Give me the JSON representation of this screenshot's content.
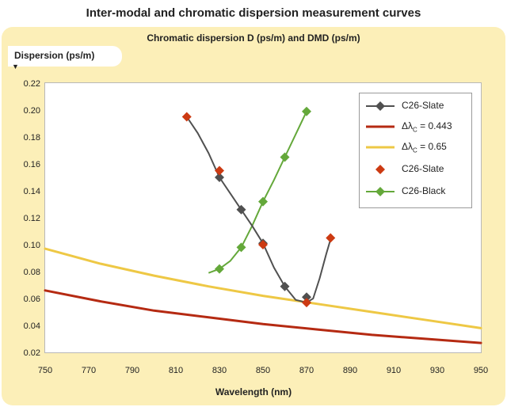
{
  "title": "Inter-modal and chromatic dispersion measurement curves",
  "chart_data": {
    "type": "line",
    "title": "Chromatic dispersion D (ps/m) and DMD (ps/m)",
    "ylabel": "Dispersion (ps/m)",
    "xlabel": "Wavelength (nm)",
    "xlim": [
      750,
      950
    ],
    "ylim": [
      0.02,
      0.22
    ],
    "xticks": [
      750,
      770,
      790,
      810,
      830,
      850,
      870,
      890,
      910,
      930,
      950
    ],
    "yticks": [
      "0.02",
      "0.04",
      "0.06",
      "0.08",
      "0.10",
      "0.12",
      "0.14",
      "0.16",
      "0.18",
      "0.20",
      "0.22"
    ],
    "grid": false,
    "legend_position": "top-right",
    "series": [
      {
        "name": "C26-Slate",
        "style": "line-markers",
        "marker": "diamond",
        "color": "#505050",
        "marker_color": "#505050",
        "x": [
          830,
          840,
          850,
          860,
          870
        ],
        "y": [
          0.15,
          0.126,
          0.101,
          0.069,
          0.061
        ],
        "curve_x": [
          815,
          820,
          825,
          830,
          835,
          840,
          845,
          850,
          855,
          860,
          865,
          870,
          873,
          876,
          879,
          881
        ],
        "curve_y": [
          0.195,
          0.183,
          0.168,
          0.15,
          0.138,
          0.126,
          0.114,
          0.101,
          0.083,
          0.069,
          0.059,
          0.057,
          0.06,
          0.075,
          0.093,
          0.104
        ]
      },
      {
        "name": "Δλc = 0.443",
        "label_main": "Δλ",
        "label_sub": "C",
        "label_value": " = 0.443",
        "style": "line",
        "color": "#b52a12",
        "x": [
          750,
          775,
          800,
          825,
          850,
          875,
          900,
          925,
          950
        ],
        "y": [
          0.066,
          0.058,
          0.051,
          0.046,
          0.041,
          0.037,
          0.033,
          0.03,
          0.027
        ]
      },
      {
        "name": "Δλc = 0.65",
        "label_main": "Δλ",
        "label_sub": "C",
        "label_value": " = 0.65",
        "style": "line",
        "color": "#eec845",
        "x": [
          750,
          775,
          800,
          825,
          850,
          875,
          900,
          925,
          950
        ],
        "y": [
          0.097,
          0.086,
          0.077,
          0.069,
          0.062,
          0.056,
          0.05,
          0.044,
          0.038
        ]
      },
      {
        "name": "C26-Slate",
        "style": "markers",
        "marker": "diamond",
        "color": "#cc3a12",
        "marker_color": "#cc3a12",
        "x": [
          815,
          830,
          850,
          870,
          881
        ],
        "y": [
          0.195,
          0.155,
          0.1,
          0.057,
          0.105
        ]
      },
      {
        "name": "C26-Black",
        "style": "line-markers",
        "marker": "diamond",
        "color": "#64a83a",
        "marker_color": "#64a83a",
        "x": [
          830,
          840,
          850,
          860,
          870
        ],
        "y": [
          0.082,
          0.098,
          0.132,
          0.165,
          0.199
        ],
        "curve_x": [
          825,
          830,
          835,
          840,
          845,
          850,
          855,
          860,
          865,
          870
        ],
        "curve_y": [
          0.079,
          0.082,
          0.088,
          0.098,
          0.114,
          0.132,
          0.148,
          0.165,
          0.182,
          0.199
        ]
      }
    ]
  }
}
